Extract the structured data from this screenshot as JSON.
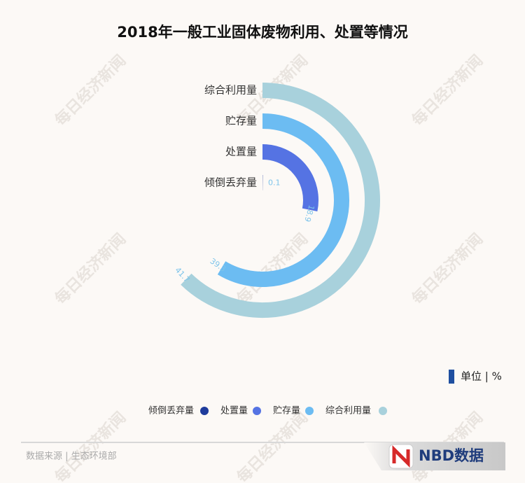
{
  "chart_data": {
    "type": "radial_bar",
    "title": "2018年一般工业固体废物利用、处置等情况",
    "categories": [
      "倾倒丢弃量",
      "处置量",
      "贮存量",
      "综合利用量"
    ],
    "values": [
      0.1,
      18.9,
      39.3,
      41.7
    ],
    "colors": [
      "#1f3c9c",
      "#5573e3",
      "#6cbcf2",
      "#a8d1dc"
    ],
    "ylim": [
      0,
      67
    ],
    "unit_label": "单位 | %"
  },
  "footer": {
    "source": "数据来源 | 生态环境部",
    "logo": "NBD数据"
  },
  "watermark": "每日经济新闻"
}
